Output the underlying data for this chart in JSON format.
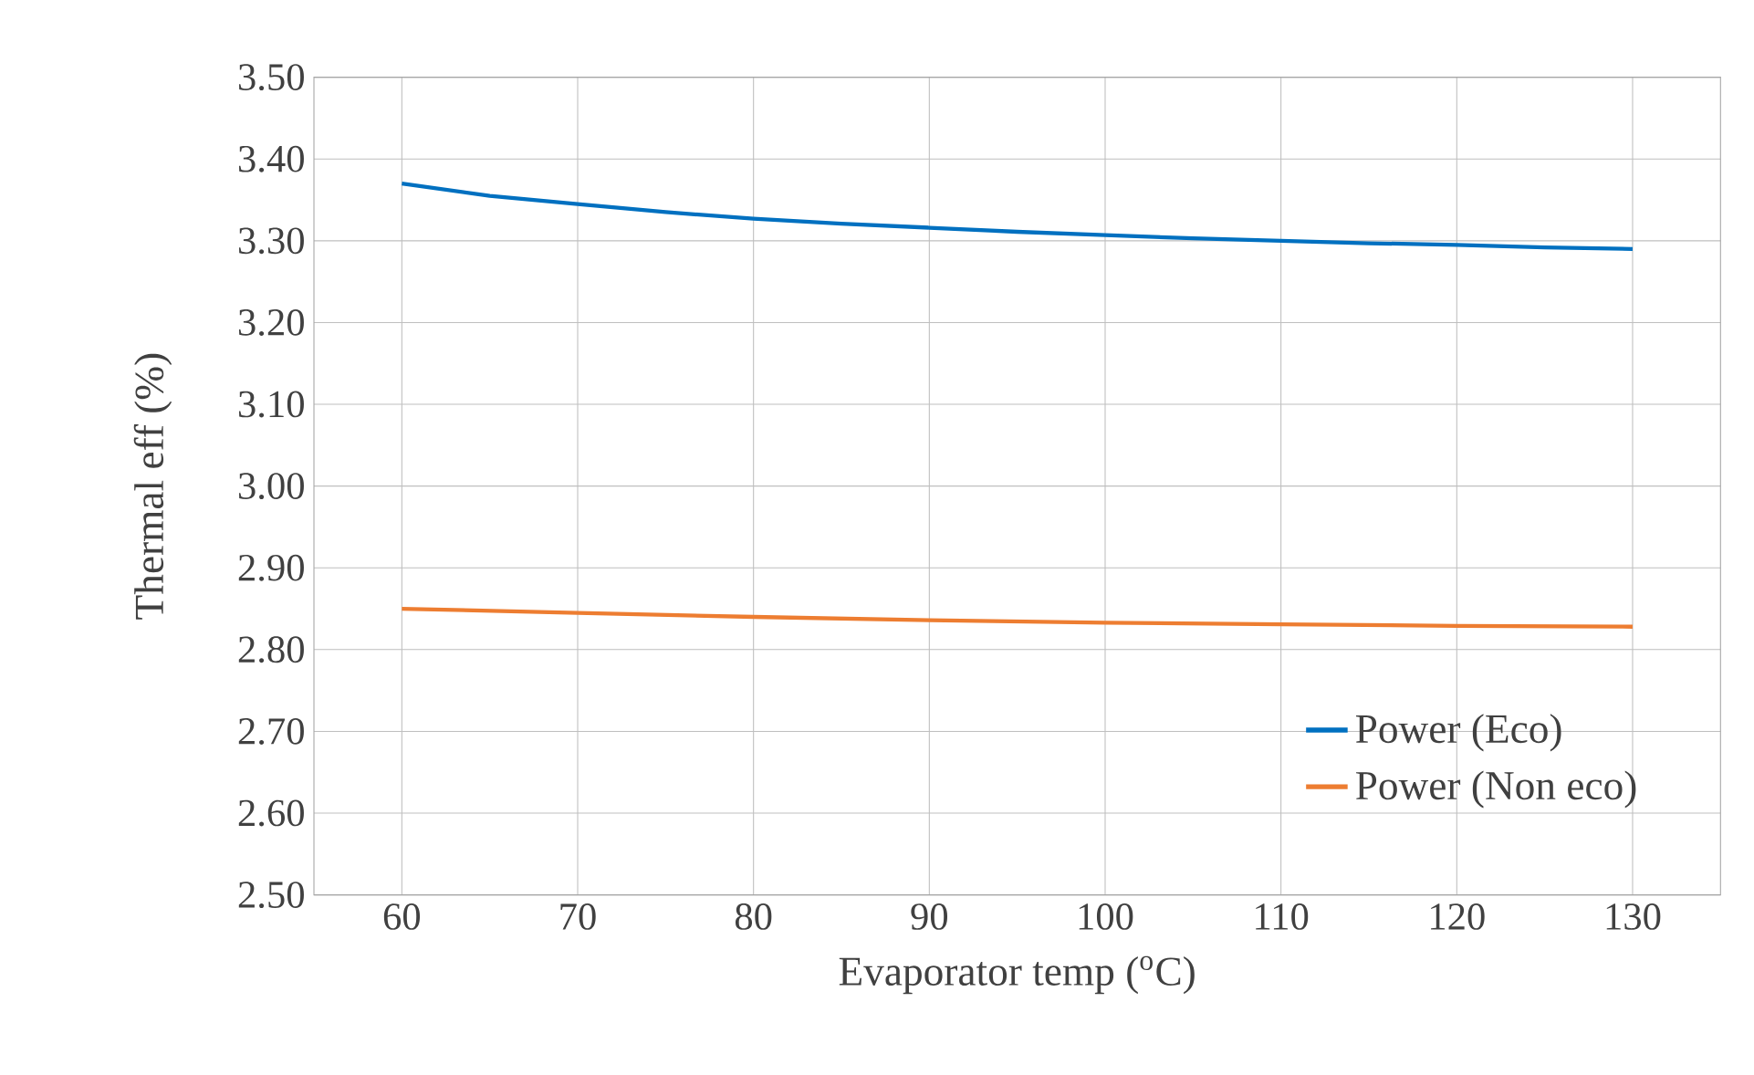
{
  "chart_data": {
    "type": "line",
    "xlabel": "Evaporator temp ($^{o}$C)",
    "ylabel": "Thermal eff (%)",
    "xlim": [
      55,
      135
    ],
    "xticks": [
      60,
      70,
      80,
      90,
      100,
      110,
      120,
      130
    ],
    "ylim": [
      2.5,
      3.5
    ],
    "yticks": [
      {
        "value": 2.5,
        "label": "2.50"
      },
      {
        "value": 2.6,
        "label": "2.60"
      },
      {
        "value": 2.7,
        "label": "2.70"
      },
      {
        "value": 2.8,
        "label": "2.80"
      },
      {
        "value": 2.9,
        "label": "2.90"
      },
      {
        "value": 3.0,
        "label": "3.00"
      },
      {
        "value": 3.1,
        "label": "3.10"
      },
      {
        "value": 3.2,
        "label": "3.20"
      },
      {
        "value": 3.3,
        "label": "3.30"
      },
      {
        "value": 3.4,
        "label": "3.40"
      },
      {
        "value": 3.5,
        "label": "3.50"
      }
    ],
    "grid": true,
    "legend": "bottom right",
    "marker": "none",
    "line_style": "solid",
    "series": [
      {
        "name": "Power (Eco)",
        "color": "#0070c0",
        "x": [
          60,
          65,
          70,
          75,
          80,
          85,
          90,
          95,
          100,
          105,
          110,
          115,
          120,
          125,
          130
        ],
        "values": [
          3.37,
          3.355,
          3.345,
          3.335,
          3.327,
          3.321,
          3.316,
          3.311,
          3.307,
          3.303,
          3.3,
          3.297,
          3.295,
          3.292,
          3.29
        ]
      },
      {
        "name": "Power (Non eco)",
        "color": "#ed7d31",
        "x": [
          60,
          70,
          80,
          90,
          100,
          110,
          120,
          130
        ],
        "values": [
          2.85,
          2.845,
          2.84,
          2.836,
          2.833,
          2.831,
          2.829,
          2.828
        ]
      }
    ]
  }
}
